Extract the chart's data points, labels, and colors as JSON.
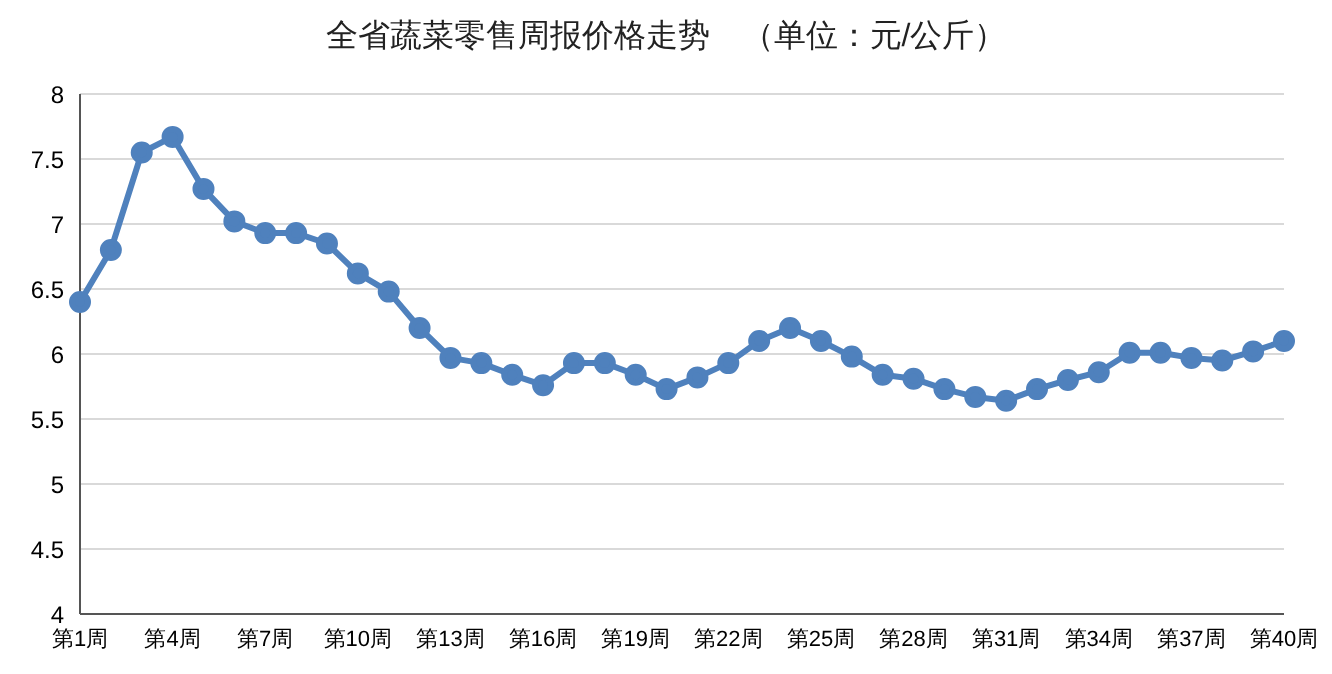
{
  "chart_data": {
    "type": "line",
    "title": "全省蔬菜零售周报价格走势　（单位：元/公斤）",
    "categories": [
      "第1周",
      null,
      null,
      "第4周",
      null,
      null,
      "第7周",
      null,
      null,
      "第10周",
      null,
      null,
      "第13周",
      null,
      null,
      "第16周",
      null,
      null,
      "第19周",
      null,
      null,
      "第22周",
      null,
      null,
      "第25周",
      null,
      null,
      "第28周",
      null,
      null,
      "第31周",
      null,
      null,
      "第34周",
      null,
      null,
      "第37周",
      null,
      null,
      "第40周"
    ],
    "series": [
      {
        "color": "#4f81bd",
        "values": [
          6.4,
          6.8,
          7.55,
          7.67,
          7.27,
          7.02,
          6.93,
          6.93,
          6.85,
          6.62,
          6.48,
          6.2,
          5.97,
          5.93,
          5.84,
          5.76,
          5.93,
          5.93,
          5.84,
          5.73,
          5.82,
          5.93,
          6.1,
          6.2,
          6.1,
          5.98,
          5.84,
          5.81,
          5.73,
          5.67,
          5.64,
          5.73,
          5.8,
          5.86,
          6.01,
          6.01,
          5.97,
          5.95,
          6.02,
          6.1
        ]
      }
    ],
    "ylim": [
      4,
      8
    ],
    "yticks": [
      4,
      4.5,
      5,
      5.5,
      6,
      6.5,
      7,
      7.5,
      8
    ],
    "grid": "y",
    "marker": "circle",
    "line_style": "solid"
  }
}
